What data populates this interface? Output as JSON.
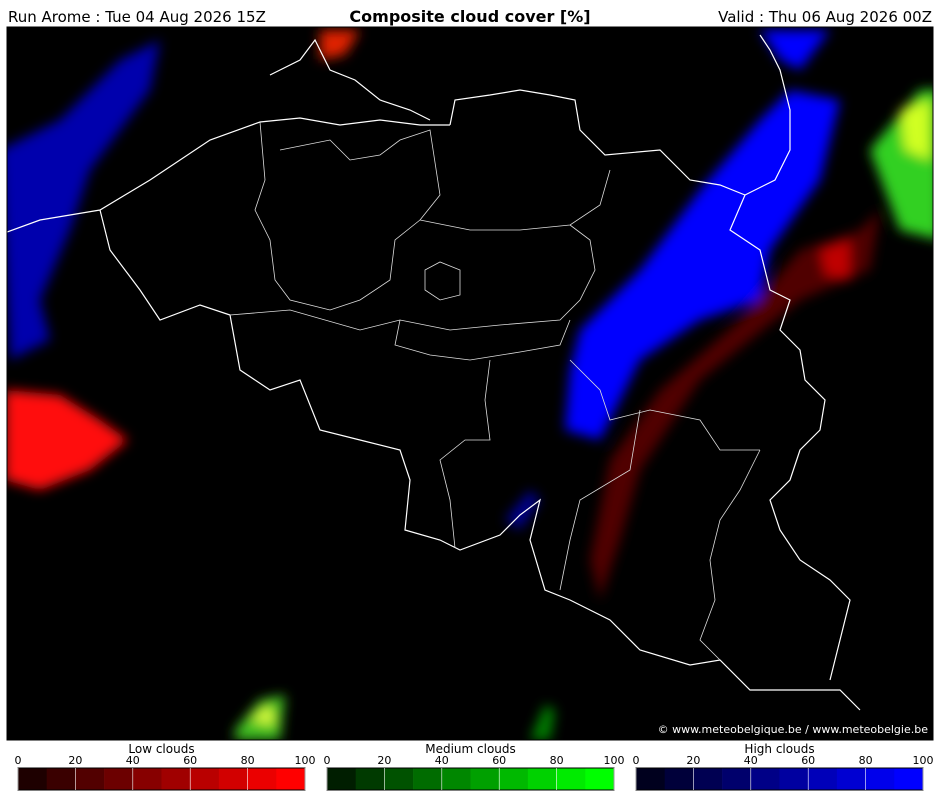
{
  "header": {
    "run": "Run Arome : Tue 04 Aug 2026 15Z",
    "title": "Composite cloud cover [%]",
    "valid": "Valid : Thu 06 Aug 2026 00Z"
  },
  "credit": "© www.meteobelgique.be / www.meteobelgie.be",
  "colorbars": [
    {
      "title": "Low clouds",
      "ticks": [
        0,
        20,
        40,
        60,
        80,
        100
      ],
      "colors": [
        "#1e0000",
        "#3a0000",
        "#520000",
        "#6c0000",
        "#870000",
        "#a00000",
        "#b90000",
        "#d20000",
        "#eb0000",
        "#ff0000"
      ]
    },
    {
      "title": "Medium clouds",
      "ticks": [
        0,
        20,
        40,
        60,
        80,
        100
      ],
      "colors": [
        "#001e00",
        "#003a00",
        "#005200",
        "#006c00",
        "#008700",
        "#00a000",
        "#00b900",
        "#00d200",
        "#00eb00",
        "#00ff00"
      ]
    },
    {
      "title": "High clouds",
      "ticks": [
        0,
        20,
        40,
        60,
        80,
        100
      ],
      "colors": [
        "#00001e",
        "#00003a",
        "#000052",
        "#00006c",
        "#000087",
        "#0000a0",
        "#0000b9",
        "#0000d2",
        "#0000eb",
        "#0000ff"
      ]
    }
  ]
}
